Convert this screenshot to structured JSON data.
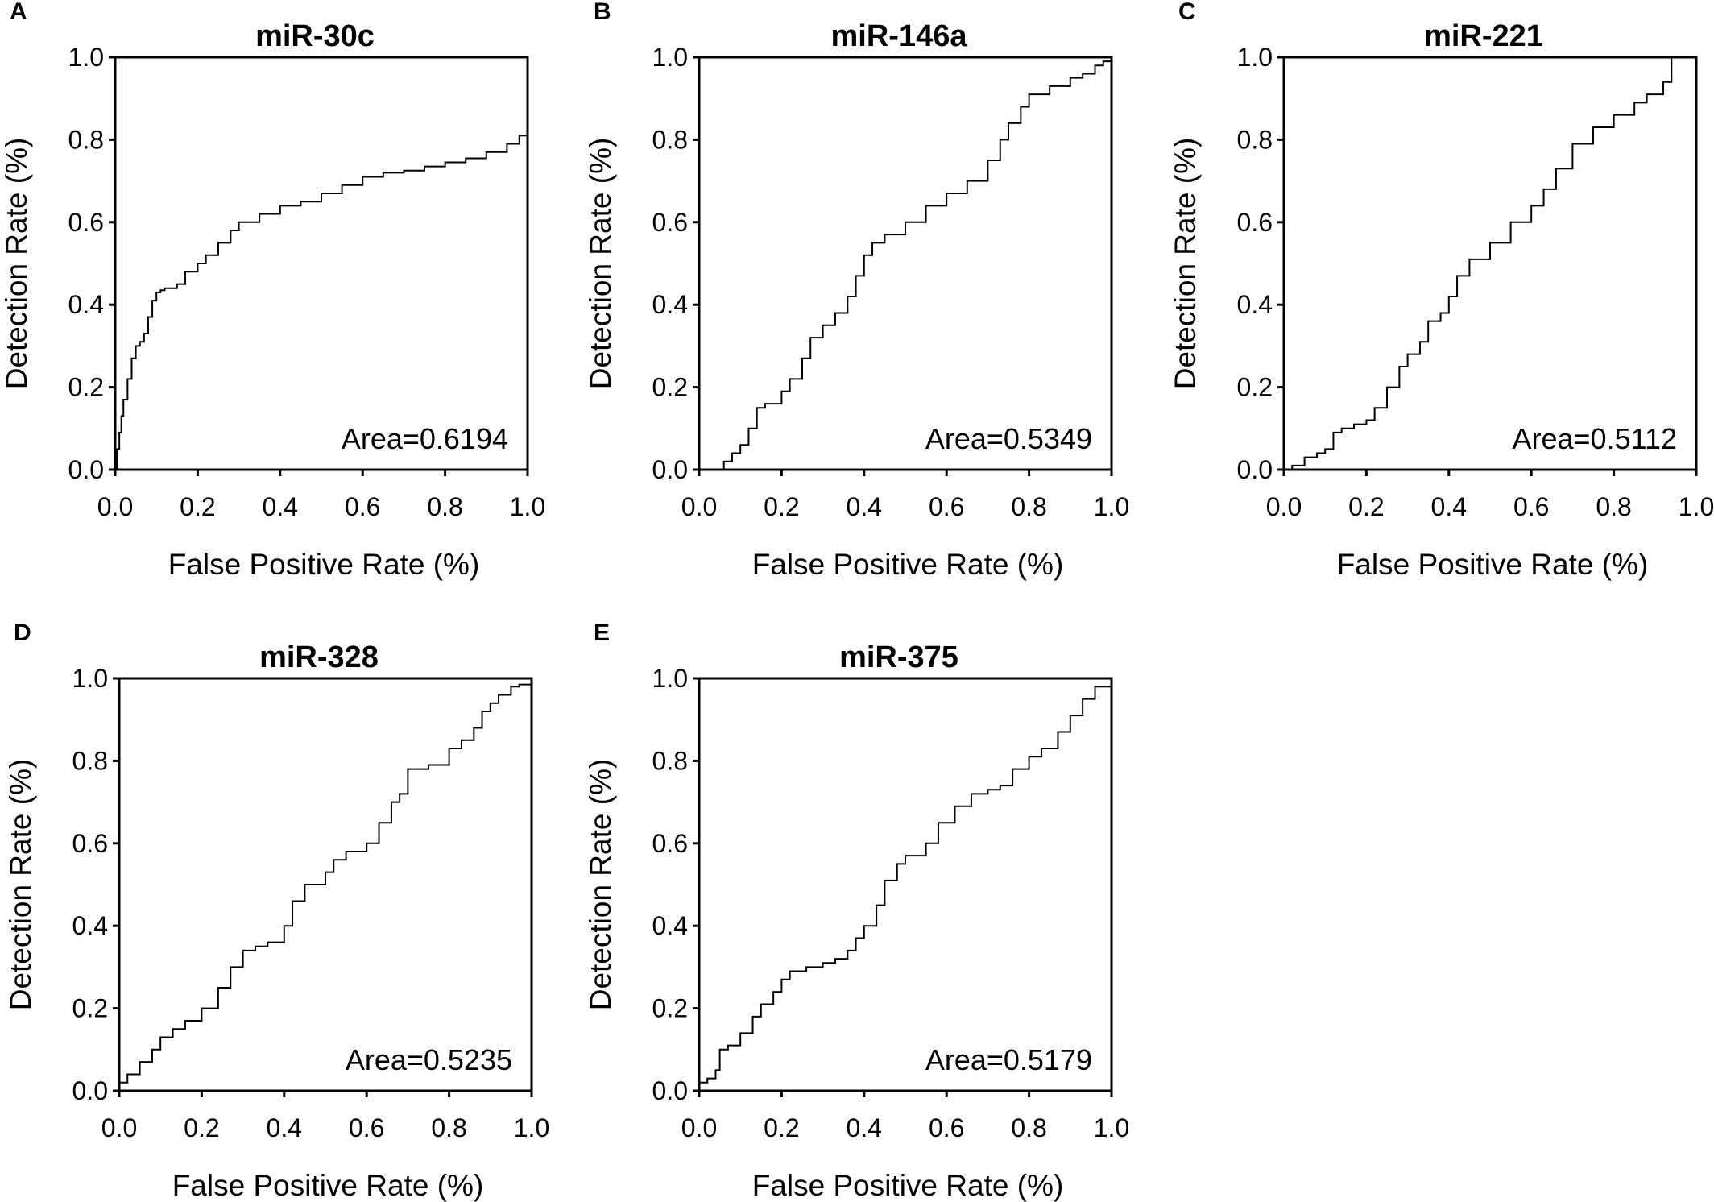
{
  "chart_data": [
    {
      "panel": "A",
      "type": "line",
      "title": "miR-30c",
      "xlabel": "False Positive Rate (%)",
      "ylabel": "Detection Rate (%)",
      "xlim": [
        0,
        1
      ],
      "ylim": [
        0,
        1
      ],
      "xticks": [
        "0.0",
        "0.2",
        "0.4",
        "0.6",
        "0.8",
        "1.0"
      ],
      "yticks": [
        "0.0",
        "0.2",
        "0.4",
        "0.6",
        "0.8",
        "1.0"
      ],
      "annotation": "Area=0.6194",
      "series": [
        {
          "x": [
            0.0,
            0.005,
            0.01,
            0.015,
            0.02,
            0.03,
            0.04,
            0.05,
            0.06,
            0.07,
            0.08,
            0.09,
            0.1,
            0.11,
            0.12,
            0.15,
            0.17,
            0.2,
            0.22,
            0.25,
            0.28,
            0.3,
            0.35,
            0.4,
            0.45,
            0.5,
            0.55,
            0.6,
            0.65,
            0.7,
            0.75,
            0.8,
            0.85,
            0.9,
            0.95,
            0.98,
            1.0,
            1.0
          ],
          "y": [
            0.0,
            0.05,
            0.09,
            0.13,
            0.17,
            0.22,
            0.27,
            0.3,
            0.31,
            0.33,
            0.37,
            0.41,
            0.43,
            0.435,
            0.44,
            0.45,
            0.48,
            0.5,
            0.52,
            0.55,
            0.58,
            0.6,
            0.62,
            0.64,
            0.65,
            0.67,
            0.69,
            0.71,
            0.72,
            0.725,
            0.735,
            0.745,
            0.755,
            0.77,
            0.79,
            0.81,
            0.83,
            0.85
          ]
        }
      ]
    },
    {
      "panel": "B",
      "type": "line",
      "title": "miR-146a",
      "xlabel": "False Positive Rate (%)",
      "ylabel": "Detection Rate (%)",
      "xlim": [
        0,
        1
      ],
      "ylim": [
        0,
        1
      ],
      "xticks": [
        "0.0",
        "0.2",
        "0.4",
        "0.6",
        "0.8",
        "1.0"
      ],
      "yticks": [
        "0.0",
        "0.2",
        "0.4",
        "0.6",
        "0.8",
        "1.0"
      ],
      "annotation": "Area=0.5349",
      "series": [
        {
          "x": [
            0.05,
            0.06,
            0.08,
            0.1,
            0.12,
            0.14,
            0.16,
            0.2,
            0.22,
            0.25,
            0.27,
            0.3,
            0.33,
            0.36,
            0.38,
            0.4,
            0.42,
            0.45,
            0.5,
            0.55,
            0.6,
            0.65,
            0.7,
            0.73,
            0.75,
            0.78,
            0.8,
            0.85,
            0.9,
            0.93,
            0.96,
            0.98,
            1.0
          ],
          "y": [
            0.0,
            0.02,
            0.04,
            0.06,
            0.1,
            0.15,
            0.16,
            0.19,
            0.22,
            0.27,
            0.32,
            0.35,
            0.38,
            0.42,
            0.47,
            0.52,
            0.55,
            0.57,
            0.6,
            0.64,
            0.67,
            0.7,
            0.75,
            0.8,
            0.84,
            0.88,
            0.91,
            0.93,
            0.95,
            0.96,
            0.98,
            0.99,
            1.0
          ]
        }
      ]
    },
    {
      "panel": "C",
      "type": "line",
      "title": "miR-221",
      "xlabel": "False Positive Rate (%)",
      "ylabel": "Detection Rate (%)",
      "xlim": [
        0,
        1
      ],
      "ylim": [
        0,
        1
      ],
      "xticks": [
        "0.0",
        "0.2",
        "0.4",
        "0.6",
        "0.8",
        "1.0"
      ],
      "yticks": [
        "0.0",
        "0.2",
        "0.4",
        "0.6",
        "0.8",
        "1.0"
      ],
      "annotation": "Area=0.5112",
      "series": [
        {
          "x": [
            0.0,
            0.02,
            0.05,
            0.08,
            0.1,
            0.12,
            0.14,
            0.17,
            0.2,
            0.22,
            0.25,
            0.28,
            0.3,
            0.33,
            0.35,
            0.38,
            0.4,
            0.42,
            0.45,
            0.5,
            0.55,
            0.6,
            0.63,
            0.66,
            0.7,
            0.75,
            0.8,
            0.85,
            0.88,
            0.92,
            0.94,
            0.94
          ],
          "y": [
            0.0,
            0.01,
            0.03,
            0.04,
            0.05,
            0.09,
            0.1,
            0.11,
            0.12,
            0.15,
            0.2,
            0.25,
            0.28,
            0.31,
            0.36,
            0.38,
            0.42,
            0.47,
            0.51,
            0.55,
            0.6,
            0.64,
            0.68,
            0.73,
            0.79,
            0.83,
            0.86,
            0.89,
            0.91,
            0.94,
            0.96,
            1.0
          ]
        }
      ]
    },
    {
      "panel": "D",
      "type": "line",
      "title": "miR-328",
      "xlabel": "False Positive Rate (%)",
      "ylabel": "Detection Rate (%)",
      "xlim": [
        0,
        1
      ],
      "ylim": [
        0,
        1
      ],
      "xticks": [
        "0.0",
        "0.2",
        "0.4",
        "0.6",
        "0.8",
        "1.0"
      ],
      "yticks": [
        "0.0",
        "0.2",
        "0.4",
        "0.6",
        "0.8",
        "1.0"
      ],
      "annotation": "Area=0.5235",
      "series": [
        {
          "x": [
            0.0,
            0.02,
            0.05,
            0.08,
            0.1,
            0.13,
            0.16,
            0.2,
            0.22,
            0.24,
            0.27,
            0.3,
            0.33,
            0.36,
            0.4,
            0.42,
            0.45,
            0.5,
            0.52,
            0.55,
            0.6,
            0.63,
            0.66,
            0.68,
            0.7,
            0.72,
            0.75,
            0.8,
            0.83,
            0.86,
            0.88,
            0.9,
            0.92,
            0.95,
            0.97,
            1.0
          ],
          "y": [
            0.02,
            0.04,
            0.07,
            0.1,
            0.13,
            0.15,
            0.17,
            0.2,
            0.2,
            0.25,
            0.3,
            0.34,
            0.35,
            0.36,
            0.4,
            0.46,
            0.5,
            0.53,
            0.56,
            0.58,
            0.6,
            0.65,
            0.7,
            0.72,
            0.78,
            0.78,
            0.79,
            0.83,
            0.85,
            0.88,
            0.92,
            0.94,
            0.96,
            0.98,
            0.985,
            1.0
          ]
        }
      ]
    },
    {
      "panel": "E",
      "type": "line",
      "title": "miR-375",
      "xlabel": "False Positive Rate (%)",
      "ylabel": "Detection Rate (%)",
      "xlim": [
        0,
        1
      ],
      "ylim": [
        0,
        1
      ],
      "xticks": [
        "0.0",
        "0.2",
        "0.4",
        "0.6",
        "0.8",
        "1.0"
      ],
      "yticks": [
        "0.0",
        "0.2",
        "0.4",
        "0.6",
        "0.8",
        "1.0"
      ],
      "annotation": "Area=0.5179",
      "series": [
        {
          "x": [
            0.0,
            0.02,
            0.04,
            0.05,
            0.07,
            0.1,
            0.13,
            0.15,
            0.18,
            0.2,
            0.22,
            0.26,
            0.3,
            0.33,
            0.36,
            0.38,
            0.4,
            0.43,
            0.45,
            0.48,
            0.5,
            0.55,
            0.58,
            0.62,
            0.66,
            0.7,
            0.73,
            0.76,
            0.8,
            0.83,
            0.87,
            0.9,
            0.93,
            0.96,
            1.0
          ],
          "y": [
            0.02,
            0.03,
            0.05,
            0.1,
            0.11,
            0.14,
            0.18,
            0.21,
            0.24,
            0.27,
            0.29,
            0.3,
            0.31,
            0.32,
            0.34,
            0.37,
            0.4,
            0.45,
            0.51,
            0.55,
            0.57,
            0.6,
            0.65,
            0.69,
            0.72,
            0.73,
            0.74,
            0.78,
            0.81,
            0.83,
            0.87,
            0.91,
            0.95,
            0.98,
            1.0
          ]
        }
      ]
    }
  ]
}
